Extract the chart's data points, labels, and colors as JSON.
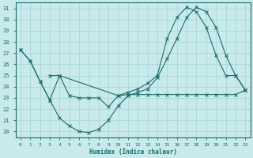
{
  "xlabel": "Humidex (Indice chaleur)",
  "bg_color": "#c8eaea",
  "grid_color": "#a8d8d8",
  "line_color": "#1a6b6b",
  "xlim": [
    -0.5,
    23.5
  ],
  "ylim": [
    19.5,
    31.5
  ],
  "xticks": [
    0,
    1,
    2,
    3,
    4,
    5,
    6,
    7,
    8,
    9,
    10,
    11,
    12,
    13,
    14,
    15,
    16,
    17,
    18,
    19,
    20,
    21,
    22,
    23
  ],
  "yticks": [
    20,
    21,
    22,
    23,
    24,
    25,
    26,
    27,
    28,
    29,
    30,
    31
  ],
  "line1_x": [
    0,
    1,
    2,
    3,
    4,
    5,
    6,
    7,
    8,
    9,
    10,
    11,
    12,
    13,
    14,
    15,
    16,
    17,
    18,
    19,
    20,
    21,
    22,
    23
  ],
  "line1_y": [
    27.3,
    26.3,
    24.5,
    22.8,
    21.2,
    20.5,
    20.0,
    19.9,
    20.2,
    21.0,
    22.3,
    23.2,
    23.5,
    23.8,
    24.8,
    26.5,
    28.3,
    30.2,
    31.1,
    30.7,
    29.3,
    26.8,
    25.0,
    23.7
  ],
  "line2_x": [
    0,
    1,
    2,
    3,
    4,
    5,
    6,
    7,
    8,
    9,
    10,
    11,
    12,
    13,
    14,
    15,
    16,
    17,
    18,
    19,
    20,
    21,
    22,
    23
  ],
  "line2_y": [
    27.3,
    26.3,
    24.5,
    22.8,
    25.0,
    23.2,
    23.0,
    23.0,
    23.0,
    22.2,
    23.2,
    23.3,
    23.3,
    23.3,
    23.3,
    23.3,
    23.3,
    23.3,
    23.3,
    23.3,
    23.3,
    23.3,
    23.3,
    23.7
  ],
  "line3_x": [
    3,
    4,
    10,
    11,
    12,
    13,
    14,
    15,
    16,
    17,
    18,
    19,
    20,
    21,
    22,
    23
  ],
  "line3_y": [
    25.0,
    25.0,
    23.2,
    23.5,
    23.8,
    24.3,
    25.0,
    28.3,
    30.2,
    31.1,
    30.7,
    29.3,
    26.8,
    25.0,
    25.0,
    23.7
  ]
}
